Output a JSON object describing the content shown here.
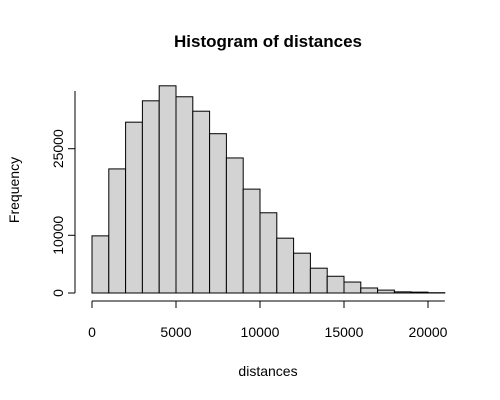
{
  "chart_data": {
    "type": "histogram",
    "title": "Histogram of distances",
    "x_label": "distances",
    "y_label": "Frequency",
    "bins": [
      0,
      1000,
      2000,
      3000,
      4000,
      5000,
      6000,
      7000,
      8000,
      9000,
      10000,
      11000,
      12000,
      13000,
      14000,
      15000,
      16000,
      17000,
      18000,
      19000,
      20000,
      21000
    ],
    "values": [
      9900,
      21500,
      29600,
      33300,
      35900,
      34000,
      31500,
      27600,
      23400,
      18000,
      13900,
      9500,
      6900,
      4300,
      2900,
      1900,
      870,
      500,
      200,
      150,
      50
    ],
    "color": "#d3d3d3",
    "xlim": [
      0,
      21000
    ],
    "xticks": [
      0,
      5000,
      10000,
      15000,
      20000
    ],
    "ylim": [
      0,
      35000
    ],
    "yticks": [
      0,
      10000,
      25000
    ],
    "grid": false
  }
}
